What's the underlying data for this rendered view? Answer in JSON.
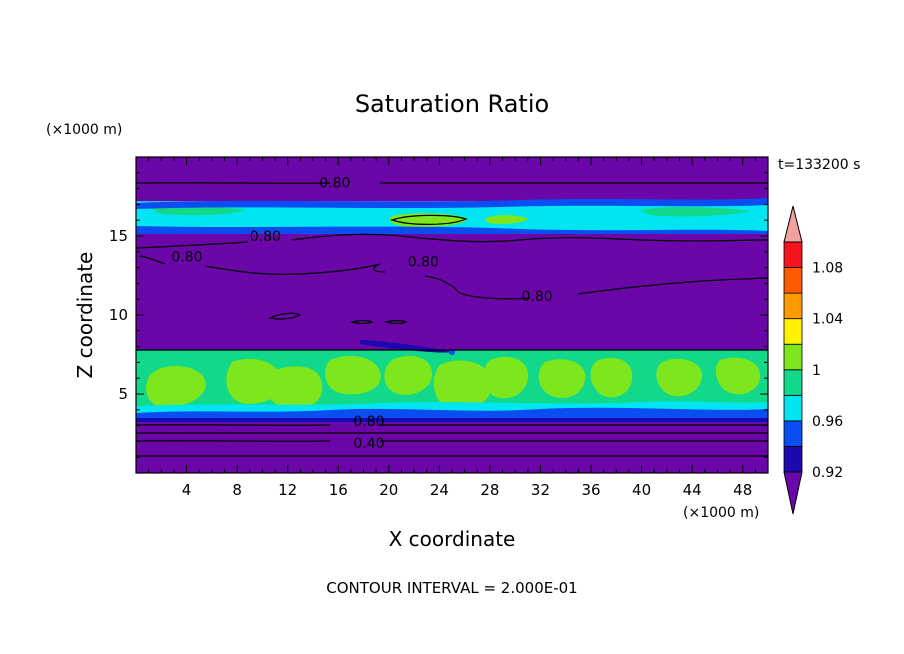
{
  "chart_data": {
    "type": "heatmap",
    "title": "Saturation Ratio",
    "xlabel": "X coordinate",
    "ylabel": "Z coordinate",
    "x_unit": "(×1000 m)",
    "y_unit": "(×1000 m)",
    "time_label": "t=133200 s",
    "footer": "CONTOUR INTERVAL = 2.000E-01",
    "xlim": [
      0,
      50
    ],
    "ylim": [
      0,
      20
    ],
    "x_ticks": [
      "4",
      "8",
      "12",
      "16",
      "20",
      "24",
      "28",
      "32",
      "36",
      "40",
      "44",
      "48"
    ],
    "y_ticks": [
      "5",
      "10",
      "15"
    ],
    "colorbar": {
      "levels": [
        0.92,
        0.94,
        0.96,
        0.98,
        1.0,
        1.02,
        1.04,
        1.06,
        1.08,
        1.1
      ],
      "tick_labels": [
        "0.92",
        "0.96",
        "1",
        "1.04",
        "1.08"
      ],
      "tick_values": [
        0.92,
        0.96,
        1.0,
        1.04,
        1.08
      ],
      "colors": [
        "#6b06a8",
        "#1a08b0",
        "#0a4ef2",
        "#00e5f0",
        "#12d98a",
        "#7ee61c",
        "#fff200",
        "#ff9a00",
        "#ff5a00",
        "#f5141e",
        "#f2a0a0"
      ]
    },
    "bands": [
      {
        "z": [
          0,
          3.2
        ],
        "color": "#6b06a8",
        "level": "< 0.92"
      },
      {
        "z": [
          3.2,
          3.5
        ],
        "color": "#1a08b0",
        "level": "0.92–0.94"
      },
      {
        "z": [
          3.5,
          7.8
        ],
        "color": "#12d98a",
        "level": "0.98–1.02",
        "patches_color": "#7ee61c"
      },
      {
        "z": [
          7.8,
          15.2
        ],
        "color": "#6b06a8",
        "level": "< 0.92"
      },
      {
        "z": [
          15.2,
          17.2
        ],
        "color": "#00e5f0",
        "level": "0.96–1.0"
      },
      {
        "z": [
          17.2,
          20
        ],
        "color": "#6b06a8",
        "level": "< 0.92"
      }
    ],
    "contour_labels": [
      {
        "text": "0.80",
        "x": 14.5,
        "z": 18.2
      },
      {
        "text": "0.80",
        "x": 9.0,
        "z": 14.8
      },
      {
        "text": "0.80",
        "x": 2.8,
        "z": 13.5
      },
      {
        "text": "0.80",
        "x": 21.5,
        "z": 13.2
      },
      {
        "text": "0.80",
        "x": 30.5,
        "z": 11.0
      },
      {
        "text": "0.80",
        "x": 17.2,
        "z": 3.1
      },
      {
        "text": "0.40",
        "x": 17.2,
        "z": 1.7
      }
    ]
  }
}
